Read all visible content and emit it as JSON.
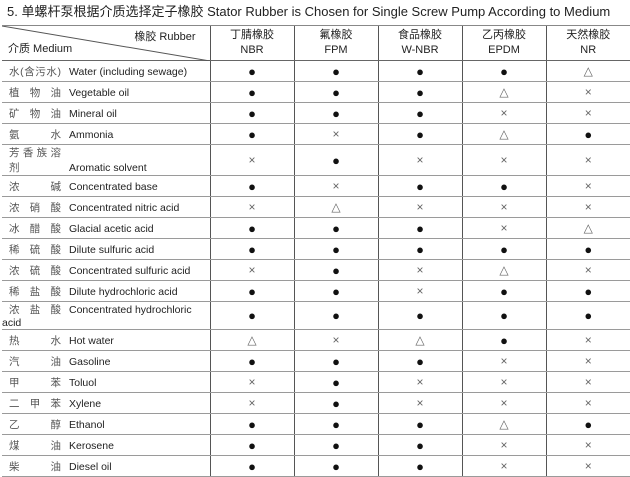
{
  "title": "5. 单螺杆泵根据介质选择定子橡胶  Stator Rubber is Chosen for Single Screw Pump According to Medium",
  "header": {
    "rubber_label": "橡胶  Rubber",
    "medium_label": "介质  Medium",
    "columns": [
      {
        "cn": "丁腈橡胶",
        "en": "NBR"
      },
      {
        "cn": "氟橡胶",
        "en": "FPM"
      },
      {
        "cn": "食品橡胶",
        "en": "W-NBR"
      },
      {
        "cn": "乙丙橡胶",
        "en": "EPDM"
      },
      {
        "cn": "天然橡胶",
        "en": "NR"
      }
    ]
  },
  "rows": [
    {
      "cn": "水(含污水)",
      "en": "Water (including sewage)",
      "v": [
        "●",
        "●",
        "●",
        "●",
        "△"
      ]
    },
    {
      "cn": "植物油",
      "en": "Vegetable oil",
      "v": [
        "●",
        "●",
        "●",
        "△",
        "×"
      ]
    },
    {
      "cn": "矿物油",
      "en": "Mineral oil",
      "v": [
        "●",
        "●",
        "●",
        "×",
        "×"
      ]
    },
    {
      "cn": "氨水",
      "en": "Ammonia",
      "v": [
        "●",
        "×",
        "●",
        "△",
        "●"
      ]
    },
    {
      "cn": "芳香族溶剂",
      "en": "Aromatic solvent",
      "v": [
        "×",
        "●",
        "×",
        "×",
        "×"
      ]
    },
    {
      "cn": "浓碱",
      "en": "Concentrated base",
      "v": [
        "●",
        "×",
        "●",
        "●",
        "×"
      ]
    },
    {
      "cn": "浓硝酸",
      "en": "Concentrated nitric acid",
      "v": [
        "×",
        "△",
        "×",
        "×",
        "×"
      ]
    },
    {
      "cn": "冰醋酸",
      "en": "Glacial acetic acid",
      "v": [
        "●",
        "●",
        "●",
        "×",
        "△"
      ]
    },
    {
      "cn": "稀硫酸",
      "en": "Dilute sulfuric acid",
      "v": [
        "●",
        "●",
        "●",
        "●",
        "●"
      ]
    },
    {
      "cn": "浓硫酸",
      "en": "Concentrated sulfuric acid",
      "v": [
        "×",
        "●",
        "×",
        "△",
        "×"
      ]
    },
    {
      "cn": "稀盐酸",
      "en": "Dilute hydrochloric acid",
      "v": [
        "●",
        "●",
        "×",
        "●",
        "●"
      ]
    },
    {
      "cn": "浓盐酸",
      "en": "Concentrated hydrochloric acid",
      "v": [
        "●",
        "●",
        "●",
        "●",
        "●"
      ]
    },
    {
      "cn": "热水",
      "en": "Hot water",
      "v": [
        "△",
        "×",
        "△",
        "●",
        "×"
      ]
    },
    {
      "cn": "汽油",
      "en": "Gasoline",
      "v": [
        "●",
        "●",
        "●",
        "×",
        "×"
      ]
    },
    {
      "cn": "甲苯",
      "en": "Toluol",
      "v": [
        "×",
        "●",
        "×",
        "×",
        "×"
      ]
    },
    {
      "cn": "二甲苯",
      "en": "Xylene",
      "v": [
        "×",
        "●",
        "×",
        "×",
        "×"
      ]
    },
    {
      "cn": "乙醇",
      "en": "Ethanol",
      "v": [
        "●",
        "●",
        "●",
        "△",
        "●"
      ]
    },
    {
      "cn": "煤油",
      "en": "Kerosene",
      "v": [
        "●",
        "●",
        "●",
        "×",
        "×"
      ]
    },
    {
      "cn": "柴油",
      "en": "Diesel oil",
      "v": [
        "●",
        "●",
        "●",
        "×",
        "×"
      ]
    }
  ]
}
